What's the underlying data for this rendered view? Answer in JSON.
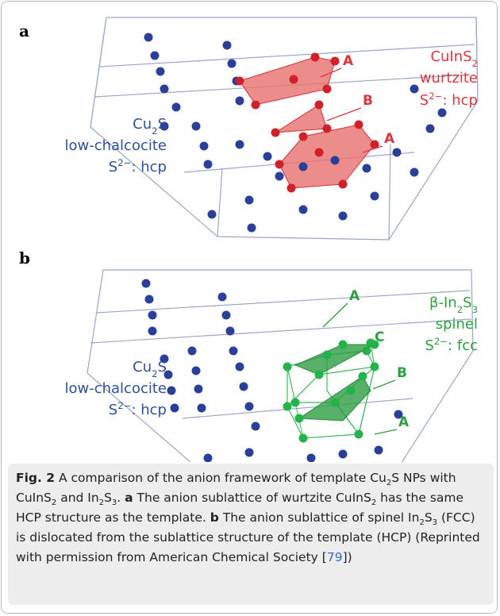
{
  "panels": [
    {
      "label": "a",
      "host": [
        [
          {
            "text": "Cu"
          },
          {
            "sub": "2"
          },
          {
            "text": "S"
          }
        ],
        [
          {
            "text": "low-chalcocite"
          }
        ],
        [
          {
            "text": "S"
          },
          {
            "sup": "2−"
          },
          {
            "text": ": hcp"
          }
        ]
      ],
      "product": [
        [
          {
            "text": "CuInS"
          },
          {
            "sub": "2"
          }
        ],
        [
          {
            "text": "wurtzite"
          }
        ],
        [
          {
            "text": "S"
          },
          {
            "sup": "2−"
          },
          {
            "text": ": hcp"
          }
        ]
      ],
      "layers": [
        "A",
        "B",
        "A"
      ]
    },
    {
      "label": "b",
      "host": [
        [
          {
            "text": "Cu"
          },
          {
            "sub": "2"
          },
          {
            "text": "S"
          }
        ],
        [
          {
            "text": "low-chalcocite"
          }
        ],
        [
          {
            "text": "S"
          },
          {
            "sup": "2−"
          },
          {
            "text": ": hcp"
          }
        ]
      ],
      "product": [
        [
          {
            "text": "β-In"
          },
          {
            "sub": "2"
          },
          {
            "text": "S"
          },
          {
            "sub": "3"
          }
        ],
        [
          {
            "text": "spinel"
          }
        ],
        [
          {
            "text": "S"
          },
          {
            "sup": "2−"
          },
          {
            "text": ": fcc"
          }
        ]
      ],
      "layers": [
        "A",
        "C",
        "B",
        "A"
      ]
    }
  ],
  "caption": [
    {
      "bold": "Fig. 2"
    },
    {
      "text": "  A comparison of the anion framework of template Cu"
    },
    {
      "sub": "2"
    },
    {
      "text": "S NPs with CuInS"
    },
    {
      "sub": "2"
    },
    {
      "text": " and In"
    },
    {
      "sub": "2"
    },
    {
      "text": "S"
    },
    {
      "sub": "3"
    },
    {
      "text": ". "
    },
    {
      "bold": "a"
    },
    {
      "text": " The anion sublattice of wurtzite CuInS"
    },
    {
      "sub": "2"
    },
    {
      "text": " has the same HCP structure as the template. "
    },
    {
      "bold": "b"
    },
    {
      "text": " The anion sublattice of spinel In"
    },
    {
      "sub": "2"
    },
    {
      "text": "S"
    },
    {
      "sub": "3"
    },
    {
      "text": " (FCC) is dislocated from the sublattice structure of the template (HCP) (Reprinted with permission from American Chemical Society ["
    },
    {
      "link": "79"
    },
    {
      "text": "])"
    }
  ]
}
